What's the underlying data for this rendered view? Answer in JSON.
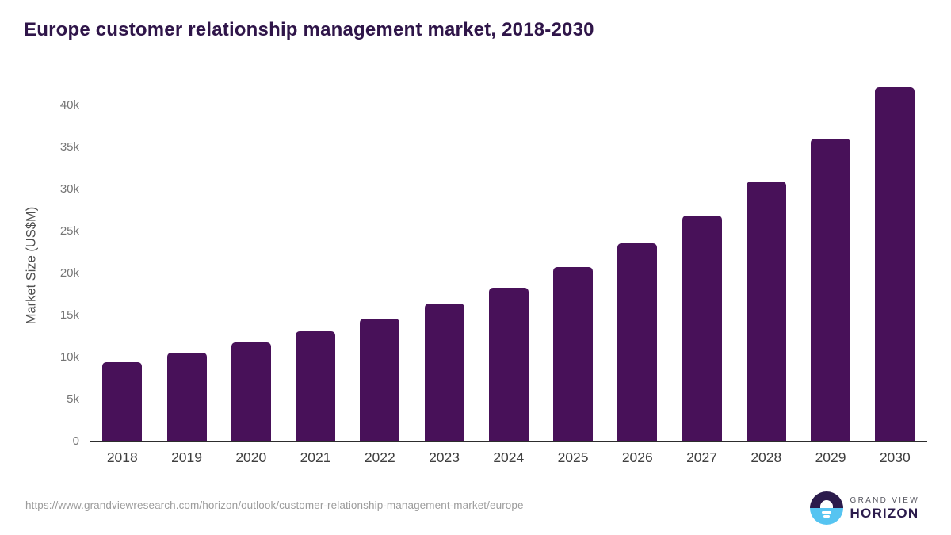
{
  "chart_data": {
    "type": "bar",
    "title": "Europe customer relationship management market, 2018-2030",
    "categories": [
      "2018",
      "2019",
      "2020",
      "2021",
      "2022",
      "2023",
      "2024",
      "2025",
      "2026",
      "2027",
      "2028",
      "2029",
      "2030"
    ],
    "values": [
      9400,
      10550,
      11800,
      13100,
      14650,
      16450,
      18300,
      20800,
      23600,
      26900,
      30900,
      36000,
      42200
    ],
    "unit": "US$M",
    "xlabel": "",
    "ylabel": "Market Size (US$M)",
    "ylim": [
      0,
      42500
    ],
    "yticks": [
      0,
      5000,
      10000,
      15000,
      20000,
      25000,
      30000,
      35000,
      40000
    ],
    "ytick_labels": [
      "0",
      "5k",
      "10k",
      "15k",
      "20k",
      "25k",
      "30k",
      "35k",
      "40k"
    ],
    "grid": true,
    "legend": false,
    "bar_color": "#481159"
  },
  "footer": {
    "source_url": "https://www.grandviewresearch.com/horizon/outlook/customer-relationship-management-market/europe",
    "logo": {
      "brand": "GRAND VIEW",
      "product": "HORIZON",
      "icon": "horizon-sunrise-icon"
    }
  },
  "colors": {
    "bar": "#481159",
    "title": "#2f1549",
    "grid": "#e9e9e9",
    "axis": "#2d2d2d",
    "ytick": "#757575",
    "xtick": "#3f3f3f",
    "ylabel": "#4f4f4f",
    "url": "#9c9c9c",
    "logo_dark": "#2b1b4c",
    "logo_blue": "#56c4f1",
    "logo_gray": "#54545e"
  }
}
